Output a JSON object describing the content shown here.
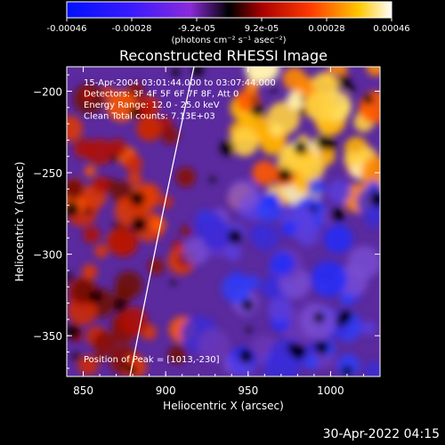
{
  "chart_data": {
    "type": "heatmap",
    "title": "Reconstructed RHESSI Image",
    "xlabel": "Heliocentric X (arcsec)",
    "ylabel": "Heliocentric Y (arcsec)",
    "xlim": [
      840,
      1030
    ],
    "ylim": [
      -375,
      -185
    ],
    "xticks": [
      850,
      900,
      950,
      1000
    ],
    "yticks": [
      -200,
      -250,
      -300,
      -350
    ],
    "colorbar": {
      "ticks": [
        "-0.00046",
        "-0.00028",
        "-9.2e-05",
        "9.2e-05",
        "0.00028",
        "0.00046"
      ],
      "unit_label": "(photons cm⁻² s⁻¹ asec⁻²)",
      "range": [
        -0.00046,
        0.00046
      ]
    },
    "annotations": [
      "15-Apr-2004 03:01:44.000 to 03:07:44.000",
      "Detectors: 3F 4F 5F 6F 7F 8F, Att 0",
      "Energy Range: 12.0 - 25.0 keV",
      "Clean     Total counts: 7.13E+03"
    ],
    "peak_label": "Position of Peak = [1013,-230]",
    "peak": [
      1013,
      -230
    ]
  },
  "footer": {
    "timestamp": "30-Apr-2022 04:15"
  }
}
